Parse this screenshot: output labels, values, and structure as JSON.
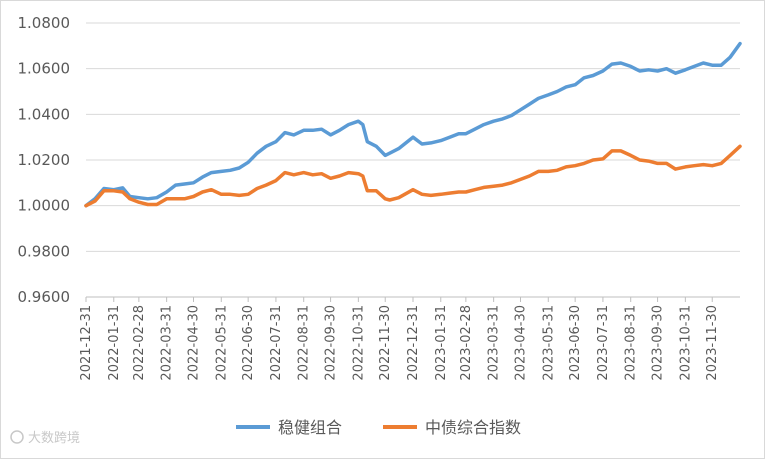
{
  "chart_data": {
    "type": "line",
    "title": "",
    "xlabel": "",
    "ylabel": "",
    "ylim": [
      0.96,
      1.08
    ],
    "y_ticks": [
      "1.0800",
      "1.0600",
      "1.0400",
      "1.0200",
      "1.0000",
      "0.9800",
      "0.9600"
    ],
    "x_ticks": [
      "2021-12-31",
      "2022-01-31",
      "2022-02-28",
      "2022-03-31",
      "2022-04-30",
      "2022-05-31",
      "2022-06-30",
      "2022-07-31",
      "2022-08-31",
      "2022-09-30",
      "2022-10-31",
      "2022-11-30",
      "2022-12-31",
      "2023-01-31",
      "2023-02-28",
      "2023-03-31",
      "2023-04-30",
      "2023-05-31",
      "2023-06-30",
      "2023-07-31",
      "2023-08-31",
      "2023-09-30",
      "2023-10-31",
      "2023-11-30"
    ],
    "grid": true,
    "legend_position": "bottom",
    "series": [
      {
        "name": "稳健组合",
        "color": "#5B9BD5",
        "points": [
          [
            "2021-12-31",
            1.0
          ],
          [
            "2022-01-10",
            1.003
          ],
          [
            "2022-01-20",
            1.0075
          ],
          [
            "2022-01-31",
            1.007
          ],
          [
            "2022-02-10",
            1.0078
          ],
          [
            "2022-02-18",
            1.004
          ],
          [
            "2022-02-28",
            1.0035
          ],
          [
            "2022-03-10",
            1.003
          ],
          [
            "2022-03-20",
            1.0035
          ],
          [
            "2022-03-31",
            1.006
          ],
          [
            "2022-04-10",
            1.009
          ],
          [
            "2022-04-20",
            1.0095
          ],
          [
            "2022-04-30",
            1.01
          ],
          [
            "2022-05-10",
            1.0125
          ],
          [
            "2022-05-20",
            1.0145
          ],
          [
            "2022-05-31",
            1.015
          ],
          [
            "2022-06-10",
            1.0155
          ],
          [
            "2022-06-20",
            1.0165
          ],
          [
            "2022-06-30",
            1.019
          ],
          [
            "2022-07-10",
            1.023
          ],
          [
            "2022-07-20",
            1.026
          ],
          [
            "2022-07-31",
            1.028
          ],
          [
            "2022-08-10",
            1.032
          ],
          [
            "2022-08-20",
            1.031
          ],
          [
            "2022-08-31",
            1.033
          ],
          [
            "2022-09-10",
            1.033
          ],
          [
            "2022-09-20",
            1.0335
          ],
          [
            "2022-09-30",
            1.031
          ],
          [
            "2022-10-10",
            1.033
          ],
          [
            "2022-10-20",
            1.0355
          ],
          [
            "2022-10-31",
            1.037
          ],
          [
            "2022-11-05",
            1.0355
          ],
          [
            "2022-11-10",
            1.028
          ],
          [
            "2022-11-20",
            1.026
          ],
          [
            "2022-11-30",
            1.022
          ],
          [
            "2022-12-05",
            1.023
          ],
          [
            "2022-12-15",
            1.025
          ],
          [
            "2022-12-31",
            1.03
          ],
          [
            "2023-01-10",
            1.027
          ],
          [
            "2023-01-20",
            1.0275
          ],
          [
            "2023-01-31",
            1.0285
          ],
          [
            "2023-02-10",
            1.03
          ],
          [
            "2023-02-20",
            1.0315
          ],
          [
            "2023-02-28",
            1.0315
          ],
          [
            "2023-03-10",
            1.0335
          ],
          [
            "2023-03-20",
            1.0355
          ],
          [
            "2023-03-31",
            1.037
          ],
          [
            "2023-04-10",
            1.038
          ],
          [
            "2023-04-20",
            1.0395
          ],
          [
            "2023-04-30",
            1.042
          ],
          [
            "2023-05-10",
            1.0445
          ],
          [
            "2023-05-20",
            1.047
          ],
          [
            "2023-05-31",
            1.0485
          ],
          [
            "2023-06-10",
            1.05
          ],
          [
            "2023-06-20",
            1.052
          ],
          [
            "2023-06-30",
            1.053
          ],
          [
            "2023-07-10",
            1.056
          ],
          [
            "2023-07-20",
            1.057
          ],
          [
            "2023-07-31",
            1.059
          ],
          [
            "2023-08-10",
            1.062
          ],
          [
            "2023-08-20",
            1.0625
          ],
          [
            "2023-08-31",
            1.061
          ],
          [
            "2023-09-10",
            1.059
          ],
          [
            "2023-09-20",
            1.0595
          ],
          [
            "2023-09-30",
            1.059
          ],
          [
            "2023-10-10",
            1.06
          ],
          [
            "2023-10-20",
            1.058
          ],
          [
            "2023-10-31",
            1.0595
          ],
          [
            "2023-11-10",
            1.061
          ],
          [
            "2023-11-20",
            1.0625
          ],
          [
            "2023-11-30",
            1.0615
          ],
          [
            "2023-12-10",
            1.0615
          ],
          [
            "2023-12-20",
            1.065
          ],
          [
            "2023-12-31",
            1.071
          ]
        ]
      },
      {
        "name": "中债综合指数",
        "color": "#ED7D31",
        "points": [
          [
            "2021-12-31",
            1.0
          ],
          [
            "2022-01-10",
            1.002
          ],
          [
            "2022-01-20",
            1.0065
          ],
          [
            "2022-01-31",
            1.0065
          ],
          [
            "2022-02-10",
            1.006
          ],
          [
            "2022-02-18",
            1.003
          ],
          [
            "2022-02-28",
            1.0015
          ],
          [
            "2022-03-10",
            1.0005
          ],
          [
            "2022-03-20",
            1.0005
          ],
          [
            "2022-03-31",
            1.003
          ],
          [
            "2022-04-10",
            1.003
          ],
          [
            "2022-04-20",
            1.003
          ],
          [
            "2022-04-30",
            1.004
          ],
          [
            "2022-05-10",
            1.006
          ],
          [
            "2022-05-20",
            1.007
          ],
          [
            "2022-05-31",
            1.005
          ],
          [
            "2022-06-10",
            1.005
          ],
          [
            "2022-06-20",
            1.0045
          ],
          [
            "2022-06-30",
            1.005
          ],
          [
            "2022-07-10",
            1.0075
          ],
          [
            "2022-07-20",
            1.009
          ],
          [
            "2022-07-31",
            1.011
          ],
          [
            "2022-08-10",
            1.0145
          ],
          [
            "2022-08-20",
            1.0135
          ],
          [
            "2022-08-31",
            1.0145
          ],
          [
            "2022-09-10",
            1.0135
          ],
          [
            "2022-09-20",
            1.014
          ],
          [
            "2022-09-30",
            1.012
          ],
          [
            "2022-10-10",
            1.013
          ],
          [
            "2022-10-20",
            1.0145
          ],
          [
            "2022-10-31",
            1.014
          ],
          [
            "2022-11-05",
            1.013
          ],
          [
            "2022-11-10",
            1.0065
          ],
          [
            "2022-11-20",
            1.0065
          ],
          [
            "2022-11-30",
            1.003
          ],
          [
            "2022-12-05",
            1.0025
          ],
          [
            "2022-12-15",
            1.0035
          ],
          [
            "2022-12-31",
            1.007
          ],
          [
            "2023-01-10",
            1.005
          ],
          [
            "2023-01-20",
            1.0045
          ],
          [
            "2023-01-31",
            1.005
          ],
          [
            "2023-02-10",
            1.0055
          ],
          [
            "2023-02-20",
            1.006
          ],
          [
            "2023-02-28",
            1.006
          ],
          [
            "2023-03-10",
            1.007
          ],
          [
            "2023-03-20",
            1.008
          ],
          [
            "2023-03-31",
            1.0085
          ],
          [
            "2023-04-10",
            1.009
          ],
          [
            "2023-04-20",
            1.01
          ],
          [
            "2023-04-30",
            1.0115
          ],
          [
            "2023-05-10",
            1.013
          ],
          [
            "2023-05-20",
            1.015
          ],
          [
            "2023-05-31",
            1.015
          ],
          [
            "2023-06-10",
            1.0155
          ],
          [
            "2023-06-20",
            1.017
          ],
          [
            "2023-06-30",
            1.0175
          ],
          [
            "2023-07-10",
            1.0185
          ],
          [
            "2023-07-20",
            1.02
          ],
          [
            "2023-07-31",
            1.0205
          ],
          [
            "2023-08-10",
            1.024
          ],
          [
            "2023-08-20",
            1.024
          ],
          [
            "2023-08-31",
            1.022
          ],
          [
            "2023-09-10",
            1.02
          ],
          [
            "2023-09-20",
            1.0195
          ],
          [
            "2023-09-30",
            1.0185
          ],
          [
            "2023-10-10",
            1.0185
          ],
          [
            "2023-10-20",
            1.016
          ],
          [
            "2023-10-31",
            1.017
          ],
          [
            "2023-11-10",
            1.0175
          ],
          [
            "2023-11-20",
            1.018
          ],
          [
            "2023-11-30",
            1.0175
          ],
          [
            "2023-12-10",
            1.0185
          ],
          [
            "2023-12-20",
            1.022
          ],
          [
            "2023-12-31",
            1.026
          ]
        ]
      }
    ]
  },
  "watermark": "大数跨境"
}
